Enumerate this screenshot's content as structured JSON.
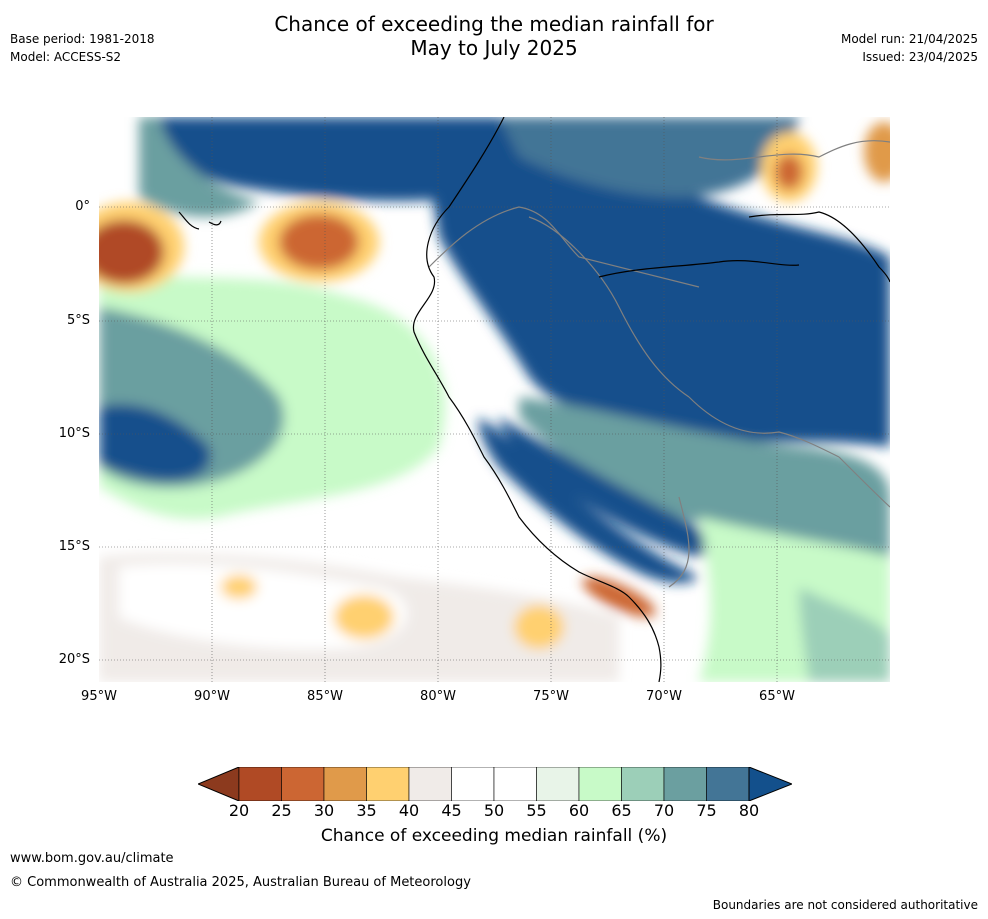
{
  "header": {
    "title_line1": "Chance of exceeding the median rainfall for",
    "title_line2": "May to July 2025",
    "base_period": "Base period: 1981-2018",
    "model": "Model: ACCESS-S2",
    "model_run": "Model run: 21/04/2025",
    "issued": "Issued: 23/04/2025"
  },
  "map": {
    "lat_labels": [
      "0°",
      "5°S",
      "10°S",
      "15°S",
      "20°S"
    ],
    "lon_labels": [
      "95°W",
      "90°W",
      "85°W",
      "80°W",
      "75°W",
      "70°W",
      "65°W"
    ],
    "colors": {
      "ocean_neutral": "#ffffff",
      "coast": "#000000",
      "borders": "#808080"
    }
  },
  "colorbar": {
    "tick_labels": [
      "20",
      "25",
      "30",
      "35",
      "40",
      "45",
      "50",
      "55",
      "60",
      "65",
      "70",
      "75",
      "80"
    ],
    "label": "Chance of exceeding median rainfall (%)",
    "colors": {
      "below_20": "#8c3a1e",
      "c20_25": "#b04a25",
      "c25_30": "#cc6633",
      "c30_35": "#e09a4a",
      "c35_40": "#ffd070",
      "c40_45": "#f0ebe8",
      "c45_50": "#ffffff",
      "c50_55": "#ffffff",
      "c55_60": "#e8f4e8",
      "c60_65": "#c8fac8",
      "c65_70": "#9ccfb8",
      "c70_75": "#6b9fa0",
      "c75_80": "#437596",
      "above_80": "#13508c"
    }
  },
  "footer": {
    "url": "www.bom.gov.au/climate",
    "copyright": "© Commonwealth of Australia 2025, Australian Bureau of Meteorology",
    "note": "Boundaries are not considered authoritative"
  }
}
